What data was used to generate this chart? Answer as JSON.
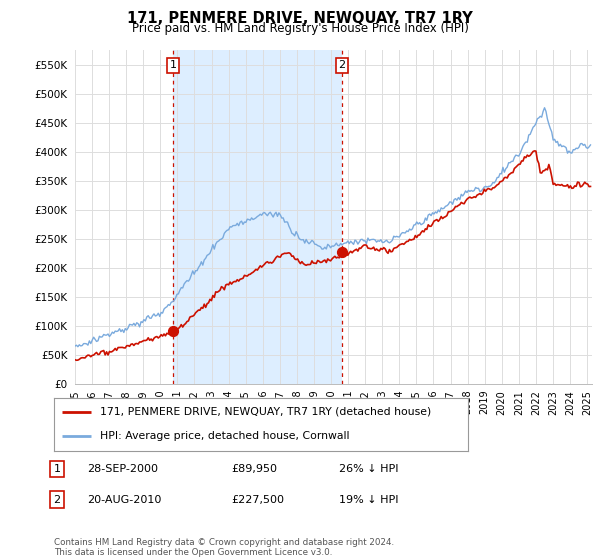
{
  "title": "171, PENMERE DRIVE, NEWQUAY, TR7 1RY",
  "subtitle": "Price paid vs. HM Land Registry's House Price Index (HPI)",
  "ylim": [
    0,
    575000
  ],
  "yticks": [
    0,
    50000,
    100000,
    150000,
    200000,
    250000,
    300000,
    350000,
    400000,
    450000,
    500000,
    550000
  ],
  "ytick_labels": [
    "£0",
    "£50K",
    "£100K",
    "£150K",
    "£200K",
    "£250K",
    "£300K",
    "£350K",
    "£400K",
    "£450K",
    "£500K",
    "£550K"
  ],
  "xlim_left": 1995,
  "xlim_right": 2025.3,
  "sale1_date": 2000.74,
  "sale1_price": 89950,
  "sale2_date": 2010.64,
  "sale2_price": 227500,
  "hpi_color": "#7aaadd",
  "sale_color": "#cc1100",
  "grid_color": "#dddddd",
  "shade_color": "#ddeeff",
  "background_color": "#ffffff",
  "legend_label_red": "171, PENMERE DRIVE, NEWQUAY, TR7 1RY (detached house)",
  "legend_label_blue": "HPI: Average price, detached house, Cornwall",
  "annotation1_date": "28-SEP-2000",
  "annotation1_price": "£89,950",
  "annotation1_hpi": "26% ↓ HPI",
  "annotation2_date": "20-AUG-2010",
  "annotation2_price": "£227,500",
  "annotation2_hpi": "19% ↓ HPI",
  "footnote": "Contains HM Land Registry data © Crown copyright and database right 2024.\nThis data is licensed under the Open Government Licence v3.0."
}
